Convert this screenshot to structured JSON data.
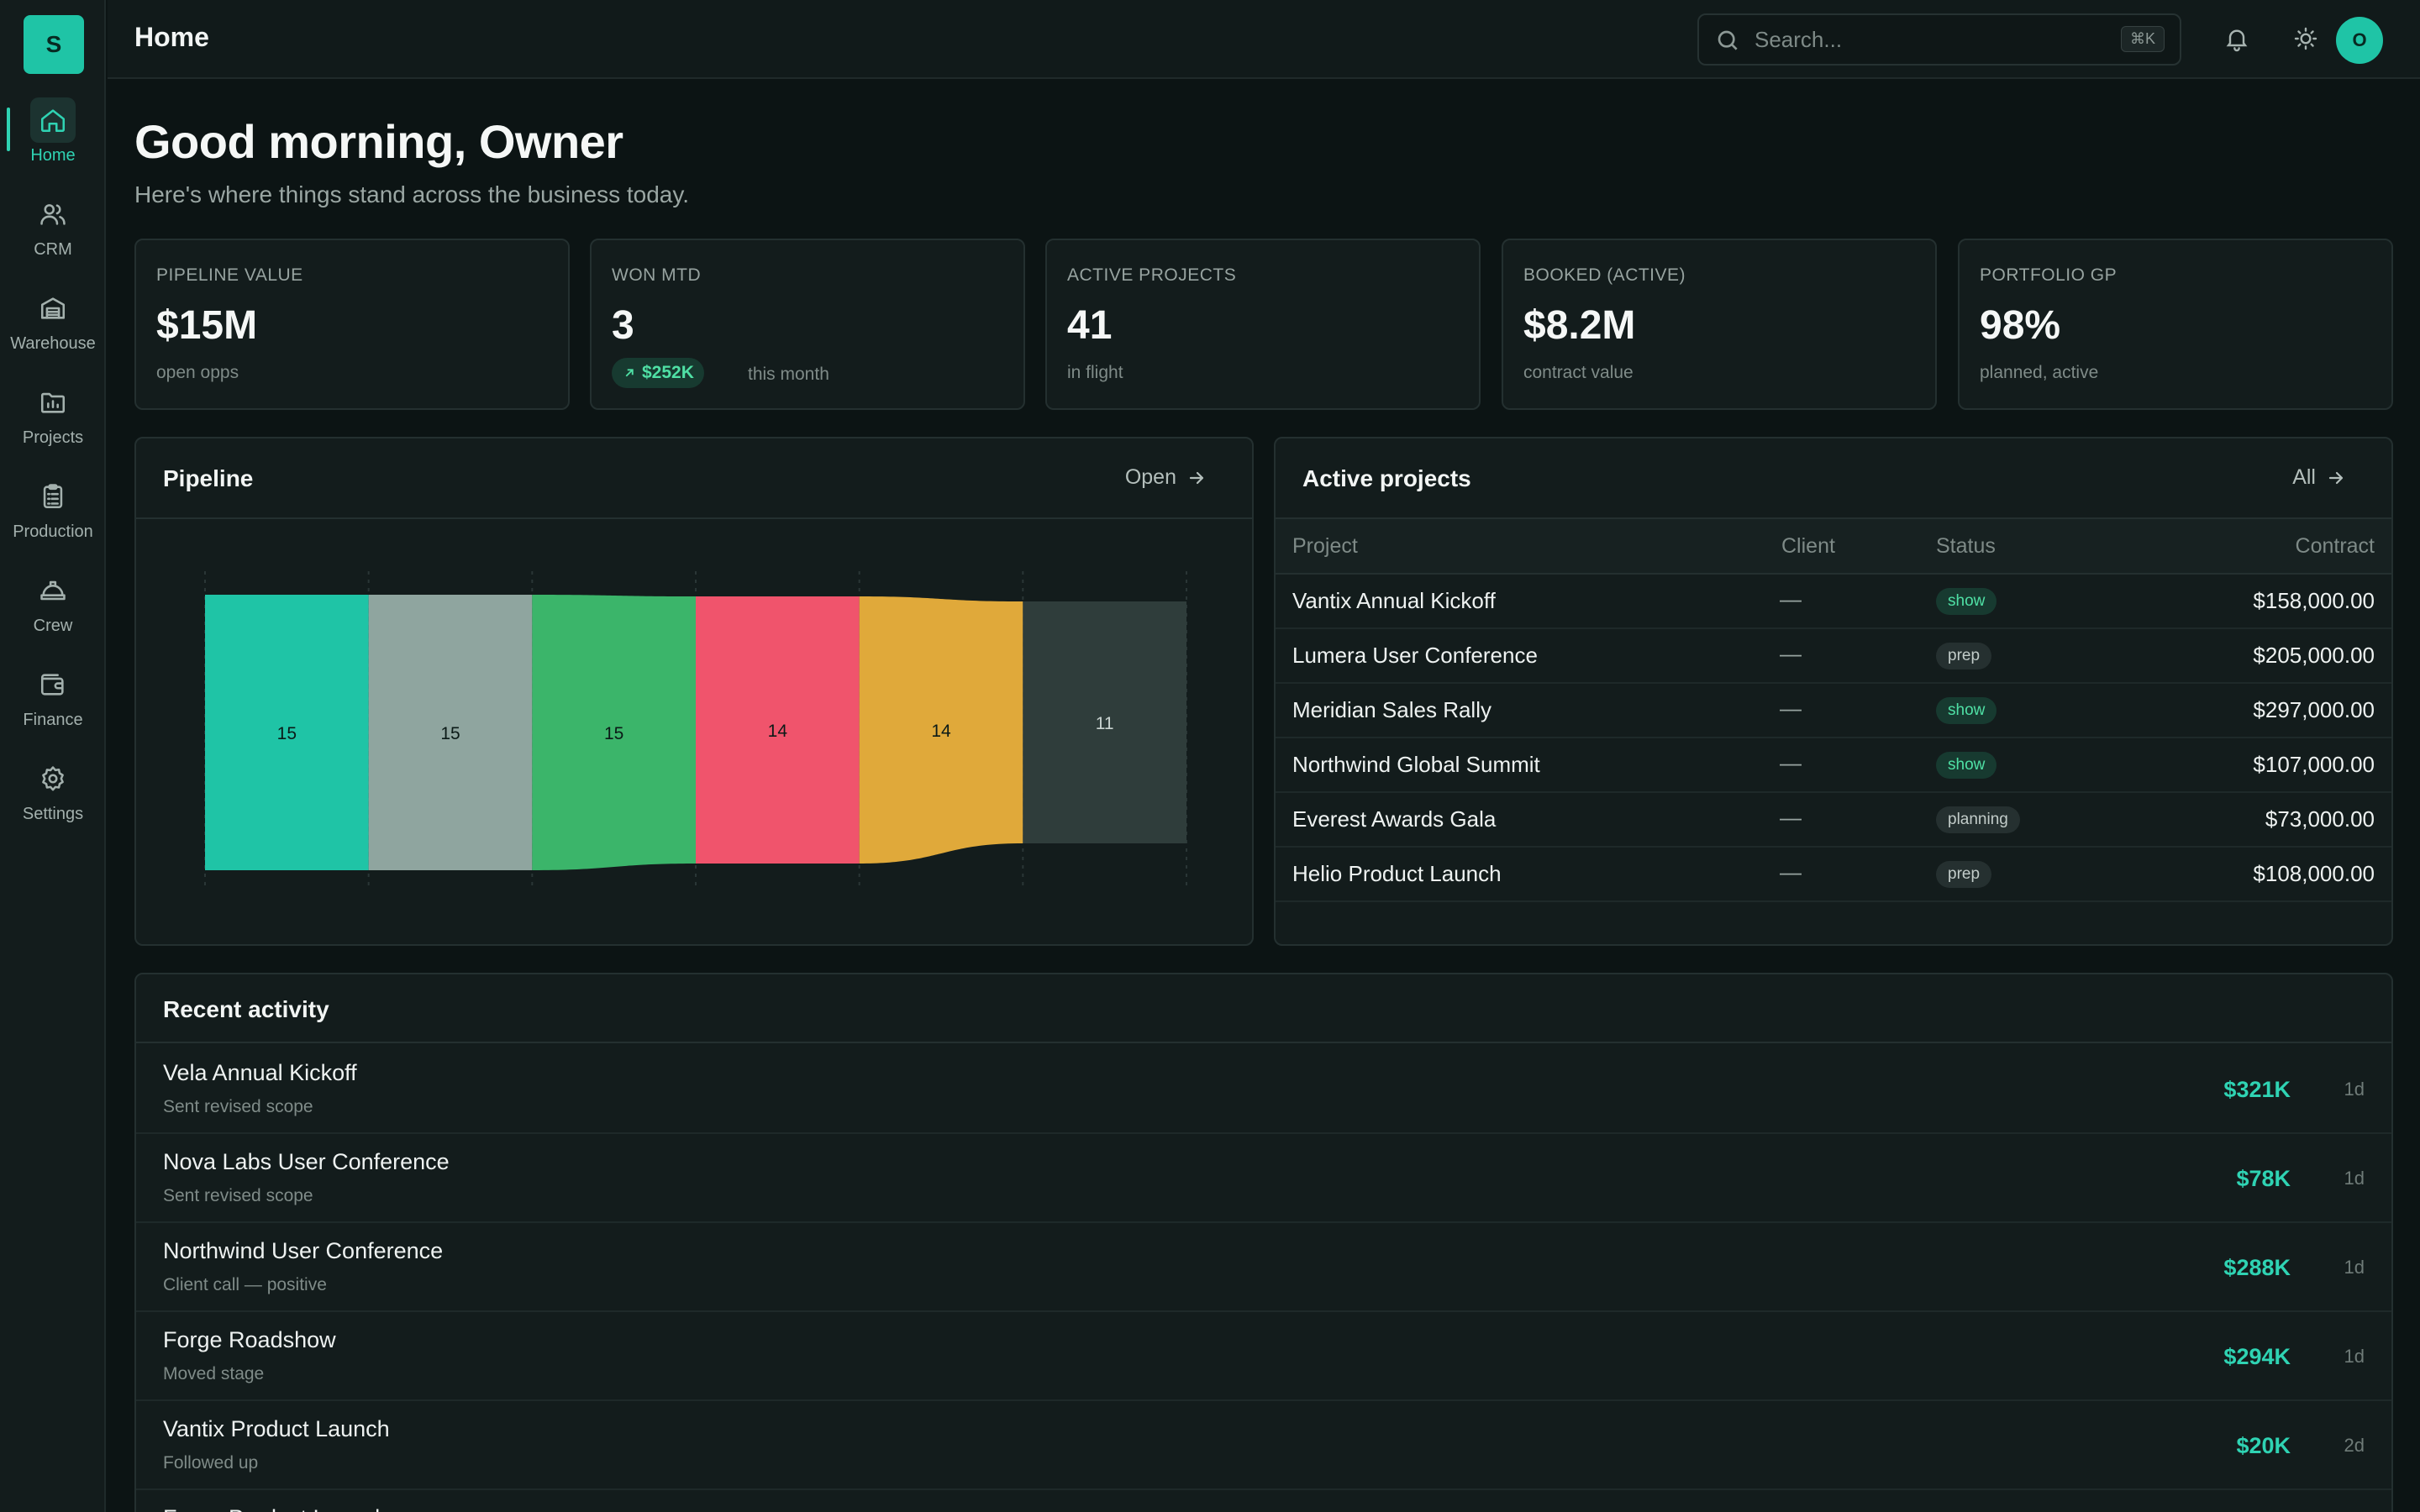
{
  "app": {
    "logo_letter": "S",
    "page_title": "Home"
  },
  "sidebar": {
    "items": [
      {
        "label": "Home",
        "icon": "home-icon"
      },
      {
        "label": "CRM",
        "icon": "users-icon"
      },
      {
        "label": "Warehouse",
        "icon": "warehouse-icon"
      },
      {
        "label": "Projects",
        "icon": "folder-icon"
      },
      {
        "label": "Production",
        "icon": "clipboard-icon"
      },
      {
        "label": "Crew",
        "icon": "hardhat-icon"
      },
      {
        "label": "Finance",
        "icon": "wallet-icon"
      },
      {
        "label": "Settings",
        "icon": "gear-icon"
      }
    ]
  },
  "search": {
    "placeholder": "Search...",
    "shortcut": "⌘K"
  },
  "user": {
    "avatar_letter": "O"
  },
  "greeting": {
    "title": "Good morning, Owner",
    "subtitle": "Here's where things stand across the business today."
  },
  "kpis": [
    {
      "label": "PIPELINE VALUE",
      "value": "$15M",
      "sub": "open opps"
    },
    {
      "label": "WON MTD",
      "value": "3",
      "badge": "$252K",
      "sub": "this month"
    },
    {
      "label": "ACTIVE PROJECTS",
      "value": "41",
      "sub": "in flight"
    },
    {
      "label": "BOOKED (ACTIVE)",
      "value": "$8.2M",
      "sub": "contract value"
    },
    {
      "label": "PORTFOLIO GP",
      "value": "98%",
      "sub": "planned, active"
    }
  ],
  "pipeline": {
    "title": "Pipeline",
    "link": "Open"
  },
  "chart_data": {
    "type": "bar",
    "categories": [
      "",
      "",
      "",
      "",
      "",
      ""
    ],
    "values": [
      15,
      15,
      15,
      14,
      14,
      11
    ],
    "colors": [
      "#1fc4a6",
      "#8fa59f",
      "#3bb56a",
      "#f0546c",
      "#e0a93a",
      "#2f3d3b"
    ],
    "ylim": [
      0,
      15
    ],
    "title": "",
    "xlabel": "",
    "ylabel": ""
  },
  "projects": {
    "title": "Active projects",
    "link": "All",
    "columns": [
      "Project",
      "Client",
      "Status",
      "Contract"
    ],
    "rows": [
      {
        "project": "Vantix Annual Kickoff",
        "client": "—",
        "status": "show",
        "contract": "$158,000.00"
      },
      {
        "project": "Lumera User Conference",
        "client": "—",
        "status": "prep",
        "contract": "$205,000.00"
      },
      {
        "project": "Meridian Sales Rally",
        "client": "—",
        "status": "show",
        "contract": "$297,000.00"
      },
      {
        "project": "Northwind Global Summit",
        "client": "—",
        "status": "show",
        "contract": "$107,000.00"
      },
      {
        "project": "Everest Awards Gala",
        "client": "—",
        "status": "planning",
        "contract": "$73,000.00"
      },
      {
        "project": "Helio Product Launch",
        "client": "—",
        "status": "prep",
        "contract": "$108,000.00"
      }
    ]
  },
  "activity": {
    "title": "Recent activity",
    "items": [
      {
        "title": "Vela Annual Kickoff",
        "sub": "Sent revised scope",
        "amount": "$321K",
        "time": "1d"
      },
      {
        "title": "Nova Labs User Conference",
        "sub": "Sent revised scope",
        "amount": "$78K",
        "time": "1d"
      },
      {
        "title": "Northwind User Conference",
        "sub": "Client call — positive",
        "amount": "$288K",
        "time": "1d"
      },
      {
        "title": "Forge Roadshow",
        "sub": "Moved stage",
        "amount": "$294K",
        "time": "1d"
      },
      {
        "title": "Vantix Product Launch",
        "sub": "Followed up",
        "amount": "$20K",
        "time": "2d"
      },
      {
        "title": "Forge Product Launch",
        "sub": "",
        "amount": "",
        "time": ""
      }
    ]
  }
}
